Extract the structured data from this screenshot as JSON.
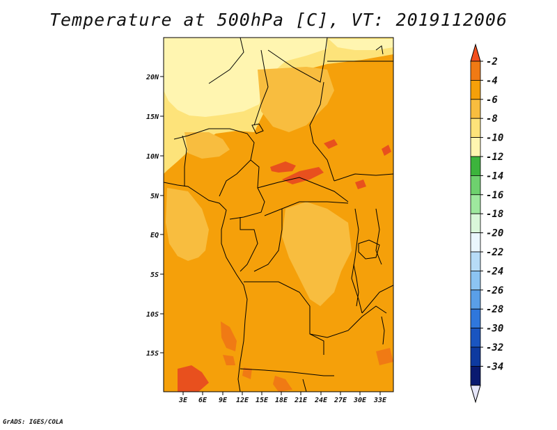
{
  "title": "Temperature at 500hPa [C], VT: 2019112006",
  "footer": "GrADS: IGES/COLA",
  "map": {
    "lat_labels": [
      "20N",
      "15N",
      "10N",
      "5N",
      "EQ",
      "5S",
      "10S",
      "15S"
    ],
    "lon_labels": [
      "3E",
      "6E",
      "9E",
      "12E",
      "15E",
      "18E",
      "21E",
      "24E",
      "27E",
      "30E",
      "33E"
    ],
    "colors": {
      "lightest_yellow": "#fff5b0",
      "pale_yellow": "#fde37a",
      "light_orange": "#f8bd3f",
      "orange": "#f5a00a",
      "dark_orange": "#f07a14",
      "red_orange": "#e8501e"
    }
  },
  "colorbar": {
    "labels": [
      "-2",
      "-4",
      "-6",
      "-8",
      "-10",
      "-12",
      "-14",
      "-16",
      "-18",
      "-20",
      "-22",
      "-24",
      "-26",
      "-28",
      "-30",
      "-32",
      "-34"
    ],
    "colors": [
      "#f24f1e",
      "#f07a14",
      "#f5a00a",
      "#f8bd3f",
      "#fde37a",
      "#fff5b0",
      "#3cb43c",
      "#6ed16e",
      "#9ee89e",
      "#d9f7d9",
      "#eaf6fd",
      "#b7dcf7",
      "#8cc4f2",
      "#5a9fe8",
      "#2f77dc",
      "#1a55c0",
      "#0e3aa0",
      "#0a1a70",
      "#e6e6fa"
    ]
  }
}
